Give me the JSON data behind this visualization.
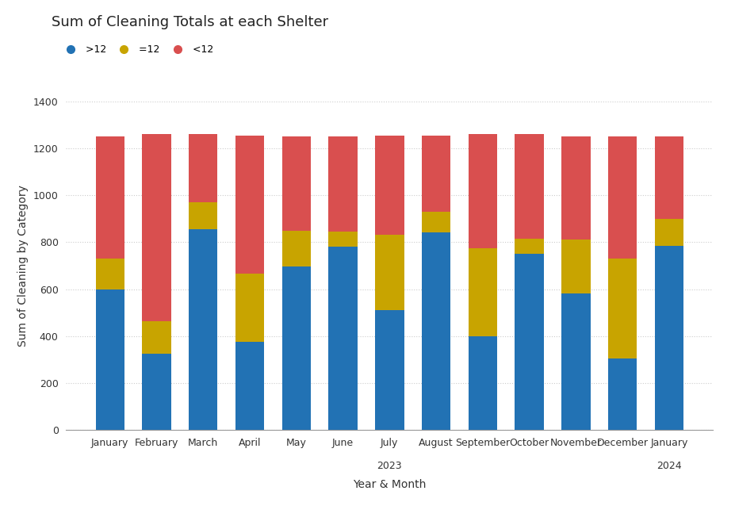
{
  "title": "Sum of Cleaning Totals at each Shelter",
  "xlabel": "Year & Month",
  "ylabel": "Sum of Cleaning by Category",
  "categories": [
    "January",
    "February",
    "March",
    "April",
    "May",
    "June",
    "July",
    "August",
    "September",
    "October",
    "November",
    "December",
    "January"
  ],
  "year_labels": [
    "",
    "",
    "",
    "",
    "",
    "",
    "2023",
    "",
    "",
    "",
    "",
    "",
    "2024"
  ],
  "blue_values": [
    600,
    325,
    855,
    375,
    695,
    780,
    510,
    840,
    400,
    750,
    580,
    305,
    785
  ],
  "yellow_values": [
    130,
    140,
    115,
    290,
    155,
    65,
    320,
    90,
    375,
    65,
    230,
    425,
    115
  ],
  "red_values": [
    520,
    795,
    290,
    590,
    400,
    405,
    425,
    325,
    485,
    445,
    440,
    520,
    350
  ],
  "blue_color": "#2272B4",
  "yellow_color": "#C8A400",
  "red_color": "#D94F4F",
  "legend_labels": [
    ">12",
    "=12",
    "<12"
  ],
  "ylim": [
    0,
    1400
  ],
  "yticks": [
    0,
    200,
    400,
    600,
    800,
    1000,
    1200,
    1400
  ],
  "bar_width": 0.62,
  "background_color": "#ffffff",
  "grid_color": "#cccccc",
  "title_fontsize": 13,
  "axis_fontsize": 10,
  "tick_fontsize": 9
}
